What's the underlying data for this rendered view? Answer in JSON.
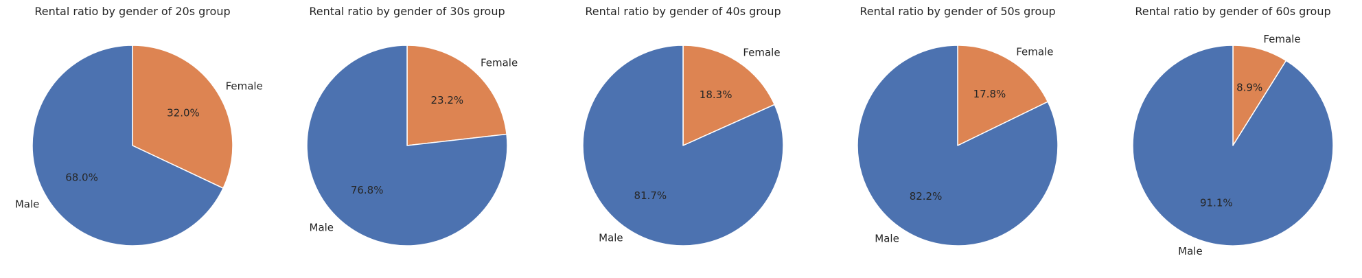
{
  "colors": {
    "male": "#4c72b0",
    "female": "#dd8452",
    "edge": "#ffffff",
    "text": "#262626"
  },
  "chart_data": [
    {
      "type": "pie",
      "title": "Rental ratio by gender of 20s group",
      "labels": [
        "Female",
        "Male"
      ],
      "values": [
        32.0,
        68.0
      ],
      "autopct": [
        "32.0%",
        "68.0%"
      ],
      "start_angle": 90,
      "direction": "clockwise"
    },
    {
      "type": "pie",
      "title": "Rental ratio by gender of 30s group",
      "labels": [
        "Female",
        "Male"
      ],
      "values": [
        23.2,
        76.8
      ],
      "autopct": [
        "23.2%",
        "76.8%"
      ],
      "start_angle": 90,
      "direction": "clockwise"
    },
    {
      "type": "pie",
      "title": "Rental ratio by gender of 40s group",
      "labels": [
        "Female",
        "Male"
      ],
      "values": [
        18.3,
        81.7
      ],
      "autopct": [
        "18.3%",
        "81.7%"
      ],
      "start_angle": 90,
      "direction": "clockwise"
    },
    {
      "type": "pie",
      "title": "Rental ratio by gender of 50s group",
      "labels": [
        "Female",
        "Male"
      ],
      "values": [
        17.8,
        82.2
      ],
      "autopct": [
        "17.8%",
        "82.2%"
      ],
      "start_angle": 90,
      "direction": "clockwise"
    },
    {
      "type": "pie",
      "title": "Rental ratio by gender of 60s group",
      "labels": [
        "Female",
        "Male"
      ],
      "values": [
        8.9,
        91.1
      ],
      "autopct": [
        "8.9%",
        "91.1%"
      ],
      "start_angle": 90,
      "direction": "clockwise"
    }
  ]
}
